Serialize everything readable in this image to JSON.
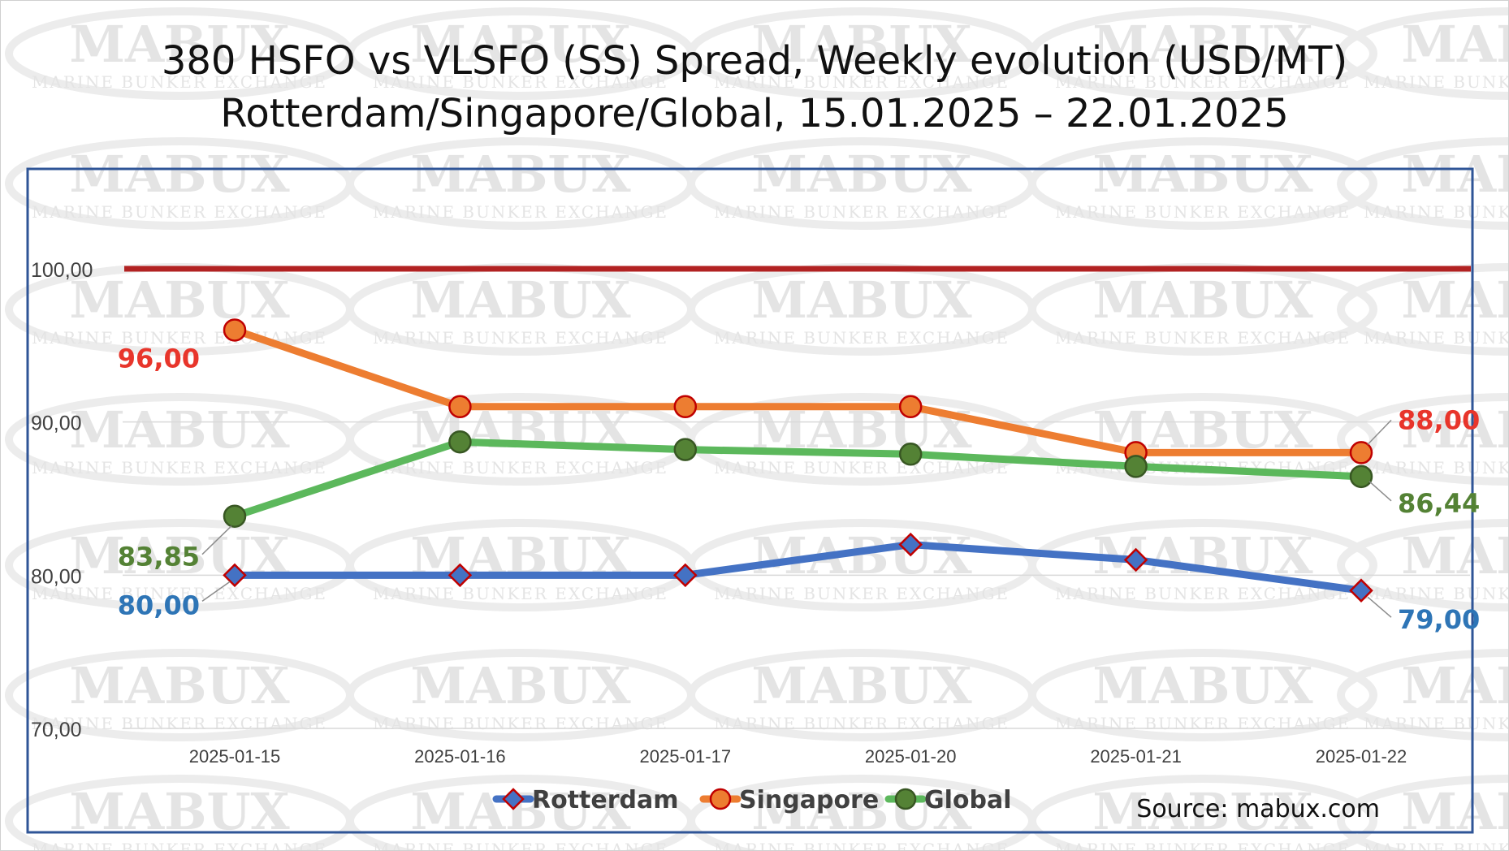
{
  "chart_data": {
    "type": "line",
    "title": "380 HSFO vs VLSFO (SS) Spread, Weekly evolution (USD/MT)",
    "subtitle": "Rotterdam/Singapore/Global, 15.01.2025 – 22.01.2025",
    "categories": [
      "2025-01-15",
      "2025-01-16",
      "2025-01-17",
      "2025-01-20",
      "2025-01-21",
      "2025-01-22"
    ],
    "ylim": [
      70,
      106.5
    ],
    "yticks": [
      {
        "value": 70,
        "label": "70,00"
      },
      {
        "value": 80,
        "label": "80,00"
      },
      {
        "value": 90,
        "label": "90,00"
      },
      {
        "value": 100,
        "label": "100,00"
      }
    ],
    "grid": true,
    "legend_position": "bottom",
    "reference_line": {
      "value": 100,
      "color": "#b22222"
    },
    "series": [
      {
        "name": "Rotterdam",
        "color": "#4472c4",
        "marker": "diamond",
        "marker_fill": "#4472c4",
        "marker_stroke": "#c00000",
        "values": [
          80,
          80,
          80,
          82,
          81,
          79
        ],
        "labels": [
          {
            "index": 0,
            "text": "80,00",
            "color": "#2e75b6"
          },
          {
            "index": 5,
            "text": "79,00",
            "color": "#2e75b6"
          }
        ]
      },
      {
        "name": "Singapore",
        "color": "#ed7d31",
        "marker": "circle",
        "marker_fill": "#ed7d31",
        "marker_stroke": "#c00000",
        "values": [
          96,
          91,
          91,
          91,
          88,
          88
        ],
        "labels": [
          {
            "index": 0,
            "text": "96,00",
            "color": "#e8352b"
          },
          {
            "index": 5,
            "text": "88,00",
            "color": "#e8352b"
          }
        ]
      },
      {
        "name": "Global",
        "color": "#5cb85c",
        "marker": "circle",
        "marker_fill": "#548235",
        "marker_stroke": "#385723",
        "values": [
          83.85,
          88.7,
          88.2,
          87.9,
          87.1,
          86.44
        ],
        "labels": [
          {
            "index": 0,
            "text": "83,85",
            "color": "#548235"
          },
          {
            "index": 5,
            "text": "86,44",
            "color": "#548235"
          }
        ]
      }
    ]
  },
  "source": "Source: mabux.com",
  "watermark": {
    "main": "MABUX",
    "sub": "MARINE BUNKER EXCHANGE"
  },
  "colors": {
    "plot_border": "#2f5597",
    "gridline": "#d9d9d9"
  }
}
